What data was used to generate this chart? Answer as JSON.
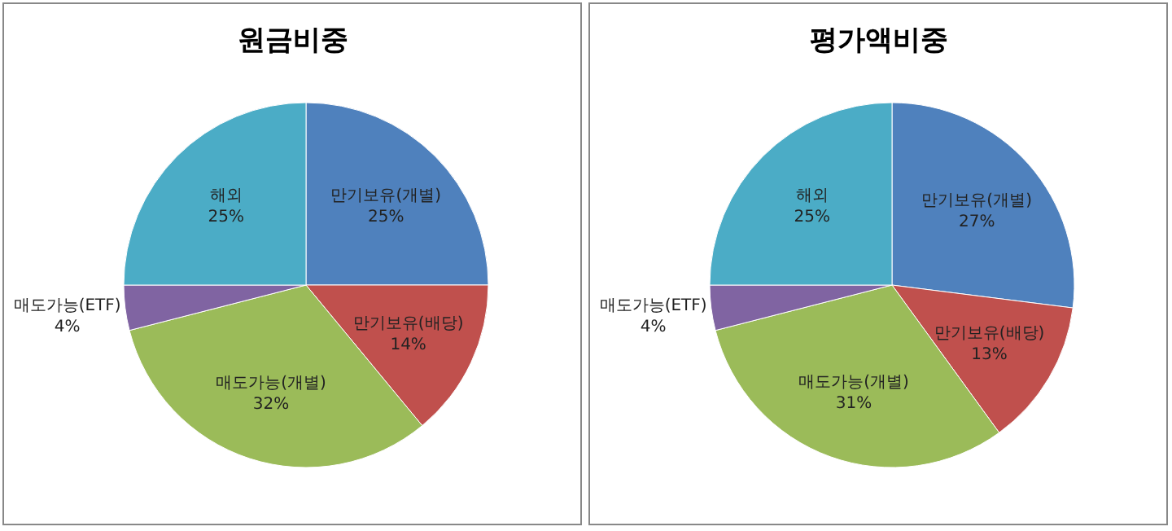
{
  "chart_data": [
    {
      "type": "pie",
      "title": "원금비중",
      "categories": [
        "만기보유(개별)",
        "만기보유(배당)",
        "매도가능(개별)",
        "매도가능(ETF)",
        "해외"
      ],
      "values": [
        25,
        14,
        32,
        4,
        25
      ],
      "value_labels": [
        "25%",
        "14%",
        "32%",
        "4%",
        "25%"
      ],
      "colors": [
        "#4f81bd",
        "#c0504d",
        "#9bbb59",
        "#8064a2",
        "#4bacc6"
      ]
    },
    {
      "type": "pie",
      "title": "평가액비중",
      "categories": [
        "만기보유(개별)",
        "만기보유(배당)",
        "매도가능(개별)",
        "매도가능(ETF)",
        "해외"
      ],
      "values": [
        27,
        13,
        31,
        4,
        25
      ],
      "value_labels": [
        "27%",
        "13%",
        "31%",
        "4%",
        "25%"
      ],
      "colors": [
        "#4f81bd",
        "#c0504d",
        "#9bbb59",
        "#8064a2",
        "#4bacc6"
      ]
    }
  ]
}
